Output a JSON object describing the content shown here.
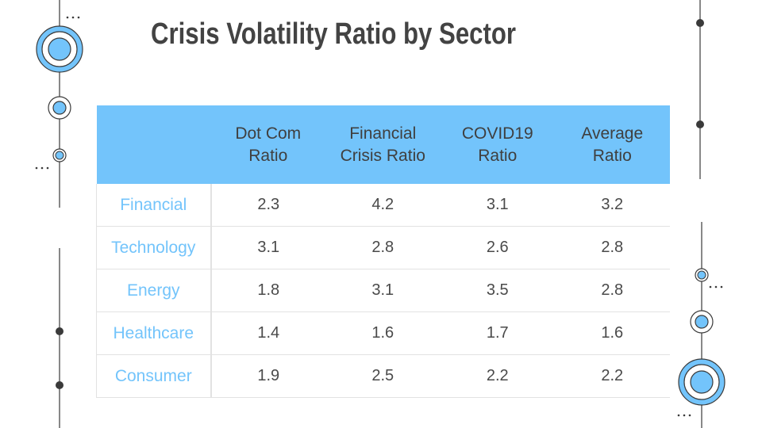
{
  "title": "Crisis Volatility Ratio by Sector",
  "colors": {
    "accent": "#73c4fb",
    "text": "#434343",
    "row_label": "#73c4fb"
  },
  "table": {
    "columns": [
      "",
      "Dot Com\nRatio",
      "Financial\nCrisis Ratio",
      "COVID19\nRatio",
      "Average\nRatio"
    ],
    "column_lines": [
      [
        "Dot Com",
        "Ratio"
      ],
      [
        "Financial",
        "Crisis Ratio"
      ],
      [
        "COVID19",
        "Ratio"
      ],
      [
        "Average",
        "Ratio"
      ]
    ],
    "rows": [
      {
        "sector": "Financial",
        "values": [
          "2.3",
          "4.2",
          "3.1",
          "3.2"
        ]
      },
      {
        "sector": "Technology",
        "values": [
          "3.1",
          "2.8",
          "2.6",
          "2.8"
        ]
      },
      {
        "sector": "Energy",
        "values": [
          "1.8",
          "3.1",
          "3.5",
          "2.8"
        ]
      },
      {
        "sector": "Healthcare",
        "values": [
          "1.4",
          "1.6",
          "1.7",
          "1.6"
        ]
      },
      {
        "sector": "Consumer",
        "values": [
          "1.9",
          "2.5",
          "2.2",
          "2.2"
        ]
      }
    ]
  }
}
